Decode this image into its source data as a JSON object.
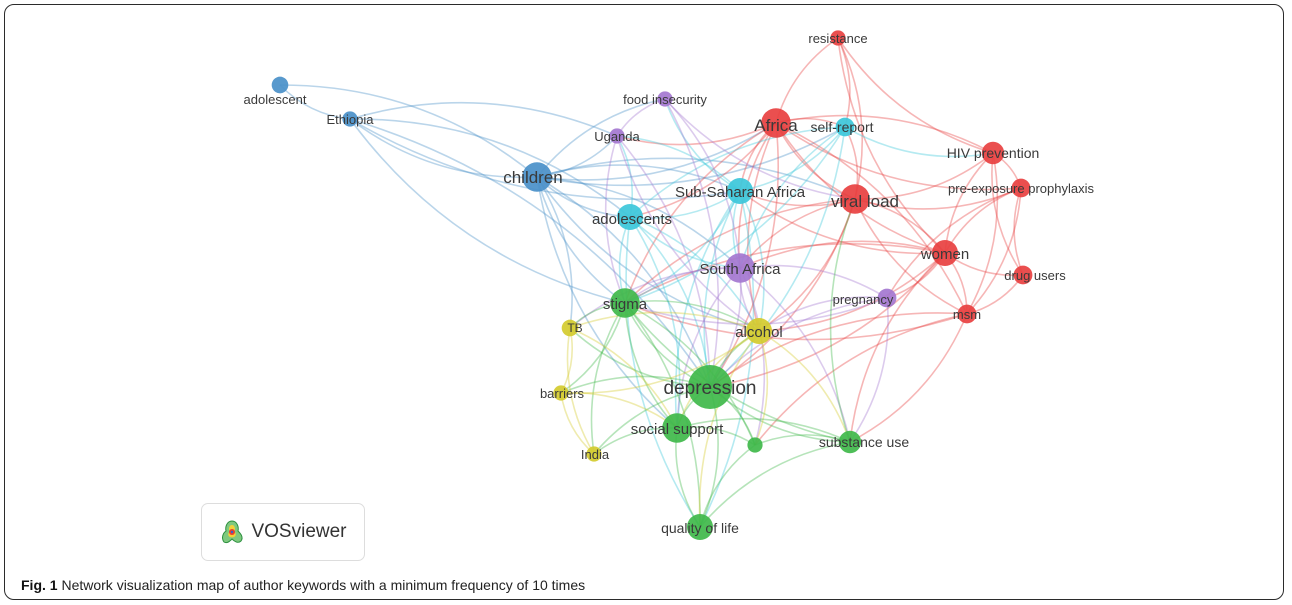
{
  "logo": {
    "text": "VOSviewer",
    "icon": "vosviewer-icon"
  },
  "caption": {
    "prefix": "Fig. 1",
    "text": "Network visualization map of author keywords with a minimum frequency of 10 times"
  },
  "clusters": {
    "red": "#e84040",
    "green": "#3fb84a",
    "blue": "#4a90c9",
    "yellow": "#d4cb2e",
    "purple": "#a477d0",
    "cyan": "#3cc7da"
  },
  "nodes": [
    {
      "id": "resistance",
      "label": "resistance",
      "cluster": "red",
      "weight": 1
    },
    {
      "id": "africa",
      "label": "Africa",
      "cluster": "red",
      "weight": 3
    },
    {
      "id": "hivprev",
      "label": "HIV prevention",
      "cluster": "red",
      "weight": 2
    },
    {
      "id": "prep",
      "label": "pre-exposure prophylaxis",
      "cluster": "red",
      "weight": 1.5
    },
    {
      "id": "viralload",
      "label": "viral load",
      "cluster": "red",
      "weight": 3
    },
    {
      "id": "women",
      "label": "women",
      "cluster": "red",
      "weight": 2.5
    },
    {
      "id": "drugusers",
      "label": "drug users",
      "cluster": "red",
      "weight": 1.5
    },
    {
      "id": "msm",
      "label": "msm",
      "cluster": "red",
      "weight": 1.5
    },
    {
      "id": "adolescent",
      "label": "adolescent",
      "cluster": "blue",
      "weight": 1.2
    },
    {
      "id": "ethiopia",
      "label": "Ethiopia",
      "cluster": "blue",
      "weight": 1
    },
    {
      "id": "children",
      "label": "children",
      "cluster": "blue",
      "weight": 3
    },
    {
      "id": "foodinsec",
      "label": "food insecurity",
      "cluster": "purple",
      "weight": 1
    },
    {
      "id": "uganda",
      "label": "Uganda",
      "cluster": "purple",
      "weight": 1
    },
    {
      "id": "southafrica",
      "label": "South Africa",
      "cluster": "purple",
      "weight": 3
    },
    {
      "id": "pregnancy",
      "label": "pregnancy",
      "cluster": "purple",
      "weight": 1.5
    },
    {
      "id": "selfreport",
      "label": "self-report",
      "cluster": "cyan",
      "weight": 1.5
    },
    {
      "id": "ssa",
      "label": "Sub-Saharan Africa",
      "cluster": "cyan",
      "weight": 2.5
    },
    {
      "id": "adolescents",
      "label": "adolescents",
      "cluster": "cyan",
      "weight": 2.5
    },
    {
      "id": "stigma",
      "label": "stigma",
      "cluster": "green",
      "weight": 3
    },
    {
      "id": "depression",
      "label": "depression",
      "cluster": "green",
      "weight": 5
    },
    {
      "id": "socialsupport",
      "label": "social support",
      "cluster": "green",
      "weight": 3
    },
    {
      "id": "substanceuse",
      "label": "substance use",
      "cluster": "green",
      "weight": 2
    },
    {
      "id": "qol",
      "label": "quality of life",
      "cluster": "green",
      "weight": 2.5
    },
    {
      "id": "unlabeled",
      "label": "",
      "cluster": "green",
      "weight": 1
    },
    {
      "id": "tb",
      "label": "TB",
      "cluster": "yellow",
      "weight": 1.2
    },
    {
      "id": "alcohol",
      "label": "alcohol",
      "cluster": "yellow",
      "weight": 2.5
    },
    {
      "id": "barriers",
      "label": "barriers",
      "cluster": "yellow",
      "weight": 1
    },
    {
      "id": "india",
      "label": "India",
      "cluster": "yellow",
      "weight": 1
    }
  ],
  "links": [
    [
      "adolescent",
      "ethiopia"
    ],
    [
      "adolescent",
      "children"
    ],
    [
      "ethiopia",
      "children"
    ],
    [
      "ethiopia",
      "adolescents"
    ],
    [
      "ethiopia",
      "stigma"
    ],
    [
      "ethiopia",
      "depression"
    ],
    [
      "ethiopia",
      "ssa"
    ],
    [
      "ethiopia",
      "uganda"
    ],
    [
      "children",
      "uganda"
    ],
    [
      "children",
      "foodinsec"
    ],
    [
      "children",
      "africa"
    ],
    [
      "children",
      "ssa"
    ],
    [
      "children",
      "adolescents"
    ],
    [
      "children",
      "southafrica"
    ],
    [
      "children",
      "stigma"
    ],
    [
      "children",
      "depression"
    ],
    [
      "children",
      "alcohol"
    ],
    [
      "children",
      "tb"
    ],
    [
      "children",
      "socialsupport"
    ],
    [
      "children",
      "viralload"
    ],
    [
      "children",
      "selfreport"
    ],
    [
      "africa",
      "resistance"
    ],
    [
      "africa",
      "viralload"
    ],
    [
      "africa",
      "hivprev"
    ],
    [
      "africa",
      "women"
    ],
    [
      "africa",
      "selfreport"
    ],
    [
      "africa",
      "ssa"
    ],
    [
      "africa",
      "adolescents"
    ],
    [
      "africa",
      "stigma"
    ],
    [
      "africa",
      "depression"
    ],
    [
      "africa",
      "southafrica"
    ],
    [
      "africa",
      "msm"
    ],
    [
      "africa",
      "prep"
    ],
    [
      "africa",
      "uganda"
    ],
    [
      "africa",
      "alcohol"
    ],
    [
      "resistance",
      "viralload"
    ],
    [
      "resistance",
      "hivprev"
    ],
    [
      "resistance",
      "selfreport"
    ],
    [
      "resistance",
      "women"
    ],
    [
      "hivprev",
      "prep"
    ],
    [
      "hivprev",
      "women"
    ],
    [
      "hivprev",
      "msm"
    ],
    [
      "hivprev",
      "drugusers"
    ],
    [
      "hivprev",
      "viralload"
    ],
    [
      "prep",
      "women"
    ],
    [
      "prep",
      "msm"
    ],
    [
      "prep",
      "drugusers"
    ],
    [
      "prep",
      "viralload"
    ],
    [
      "prep",
      "pregnancy"
    ],
    [
      "viralload",
      "women"
    ],
    [
      "viralload",
      "selfreport"
    ],
    [
      "viralload",
      "ssa"
    ],
    [
      "viralload",
      "southafrica"
    ],
    [
      "viralload",
      "depression"
    ],
    [
      "viralload",
      "stigma"
    ],
    [
      "viralload",
      "alcohol"
    ],
    [
      "viralload",
      "msm"
    ],
    [
      "women",
      "msm"
    ],
    [
      "women",
      "drugusers"
    ],
    [
      "women",
      "pregnancy"
    ],
    [
      "women",
      "southafrica"
    ],
    [
      "women",
      "ssa"
    ],
    [
      "women",
      "substanceuse"
    ],
    [
      "women",
      "depression"
    ],
    [
      "women",
      "stigma"
    ],
    [
      "women",
      "alcohol"
    ],
    [
      "msm",
      "drugusers"
    ],
    [
      "msm",
      "substanceuse"
    ],
    [
      "msm",
      "depression"
    ],
    [
      "msm",
      "stigma"
    ],
    [
      "msm",
      "unlabeled"
    ],
    [
      "selfreport",
      "ssa"
    ],
    [
      "selfreport",
      "adolescents"
    ],
    [
      "selfreport",
      "depression"
    ],
    [
      "selfreport",
      "southafrica"
    ],
    [
      "selfreport",
      "stigma"
    ],
    [
      "selfreport",
      "hivprev"
    ],
    [
      "ssa",
      "adolescents"
    ],
    [
      "ssa",
      "southafrica"
    ],
    [
      "ssa",
      "stigma"
    ],
    [
      "ssa",
      "depression"
    ],
    [
      "ssa",
      "alcohol"
    ],
    [
      "ssa",
      "socialsupport"
    ],
    [
      "ssa",
      "foodinsec"
    ],
    [
      "ssa",
      "uganda"
    ],
    [
      "ssa",
      "qol"
    ],
    [
      "adolescents",
      "stigma"
    ],
    [
      "adolescents",
      "depression"
    ],
    [
      "adolescents",
      "southafrica"
    ],
    [
      "adolescents",
      "socialsupport"
    ],
    [
      "adolescents",
      "uganda"
    ],
    [
      "adolescents",
      "alcohol"
    ],
    [
      "adolescents",
      "qol"
    ],
    [
      "uganda",
      "depression"
    ],
    [
      "uganda",
      "stigma"
    ],
    [
      "uganda",
      "foodinsec"
    ],
    [
      "uganda",
      "alcohol"
    ],
    [
      "foodinsec",
      "depression"
    ],
    [
      "foodinsec",
      "viralload"
    ],
    [
      "foodinsec",
      "southafrica"
    ],
    [
      "southafrica",
      "stigma"
    ],
    [
      "southafrica",
      "depression"
    ],
    [
      "southafrica",
      "alcohol"
    ],
    [
      "southafrica",
      "pregnancy"
    ],
    [
      "southafrica",
      "socialsupport"
    ],
    [
      "southafrica",
      "substanceuse"
    ],
    [
      "southafrica",
      "tb"
    ],
    [
      "southafrica",
      "unlabeled"
    ],
    [
      "pregnancy",
      "depression"
    ],
    [
      "pregnancy",
      "stigma"
    ],
    [
      "pregnancy",
      "alcohol"
    ],
    [
      "pregnancy",
      "substanceuse"
    ],
    [
      "stigma",
      "depression"
    ],
    [
      "stigma",
      "alcohol"
    ],
    [
      "stigma",
      "tb"
    ],
    [
      "stigma",
      "barriers"
    ],
    [
      "stigma",
      "socialsupport"
    ],
    [
      "stigma",
      "qol"
    ],
    [
      "stigma",
      "substanceuse"
    ],
    [
      "stigma",
      "unlabeled"
    ],
    [
      "stigma",
      "india"
    ],
    [
      "depression",
      "alcohol"
    ],
    [
      "depression",
      "socialsupport"
    ],
    [
      "depression",
      "qol"
    ],
    [
      "depression",
      "substanceuse"
    ],
    [
      "depression",
      "unlabeled"
    ],
    [
      "depression",
      "barriers"
    ],
    [
      "depression",
      "tb"
    ],
    [
      "depression",
      "india"
    ],
    [
      "alcohol",
      "substanceuse"
    ],
    [
      "alcohol",
      "socialsupport"
    ],
    [
      "alcohol",
      "unlabeled"
    ],
    [
      "alcohol",
      "tb"
    ],
    [
      "alcohol",
      "barriers"
    ],
    [
      "alcohol",
      "qol"
    ],
    [
      "tb",
      "barriers"
    ],
    [
      "tb",
      "india"
    ],
    [
      "tb",
      "socialsupport"
    ],
    [
      "barriers",
      "india"
    ],
    [
      "barriers",
      "socialsupport"
    ],
    [
      "socialsupport",
      "qol"
    ],
    [
      "socialsupport",
      "unlabeled"
    ],
    [
      "socialsupport",
      "india"
    ],
    [
      "socialsupport",
      "substanceuse"
    ],
    [
      "unlabeled",
      "qol"
    ],
    [
      "unlabeled",
      "substanceuse"
    ],
    [
      "substanceuse",
      "qol"
    ],
    [
      "substanceuse",
      "viralload"
    ]
  ]
}
